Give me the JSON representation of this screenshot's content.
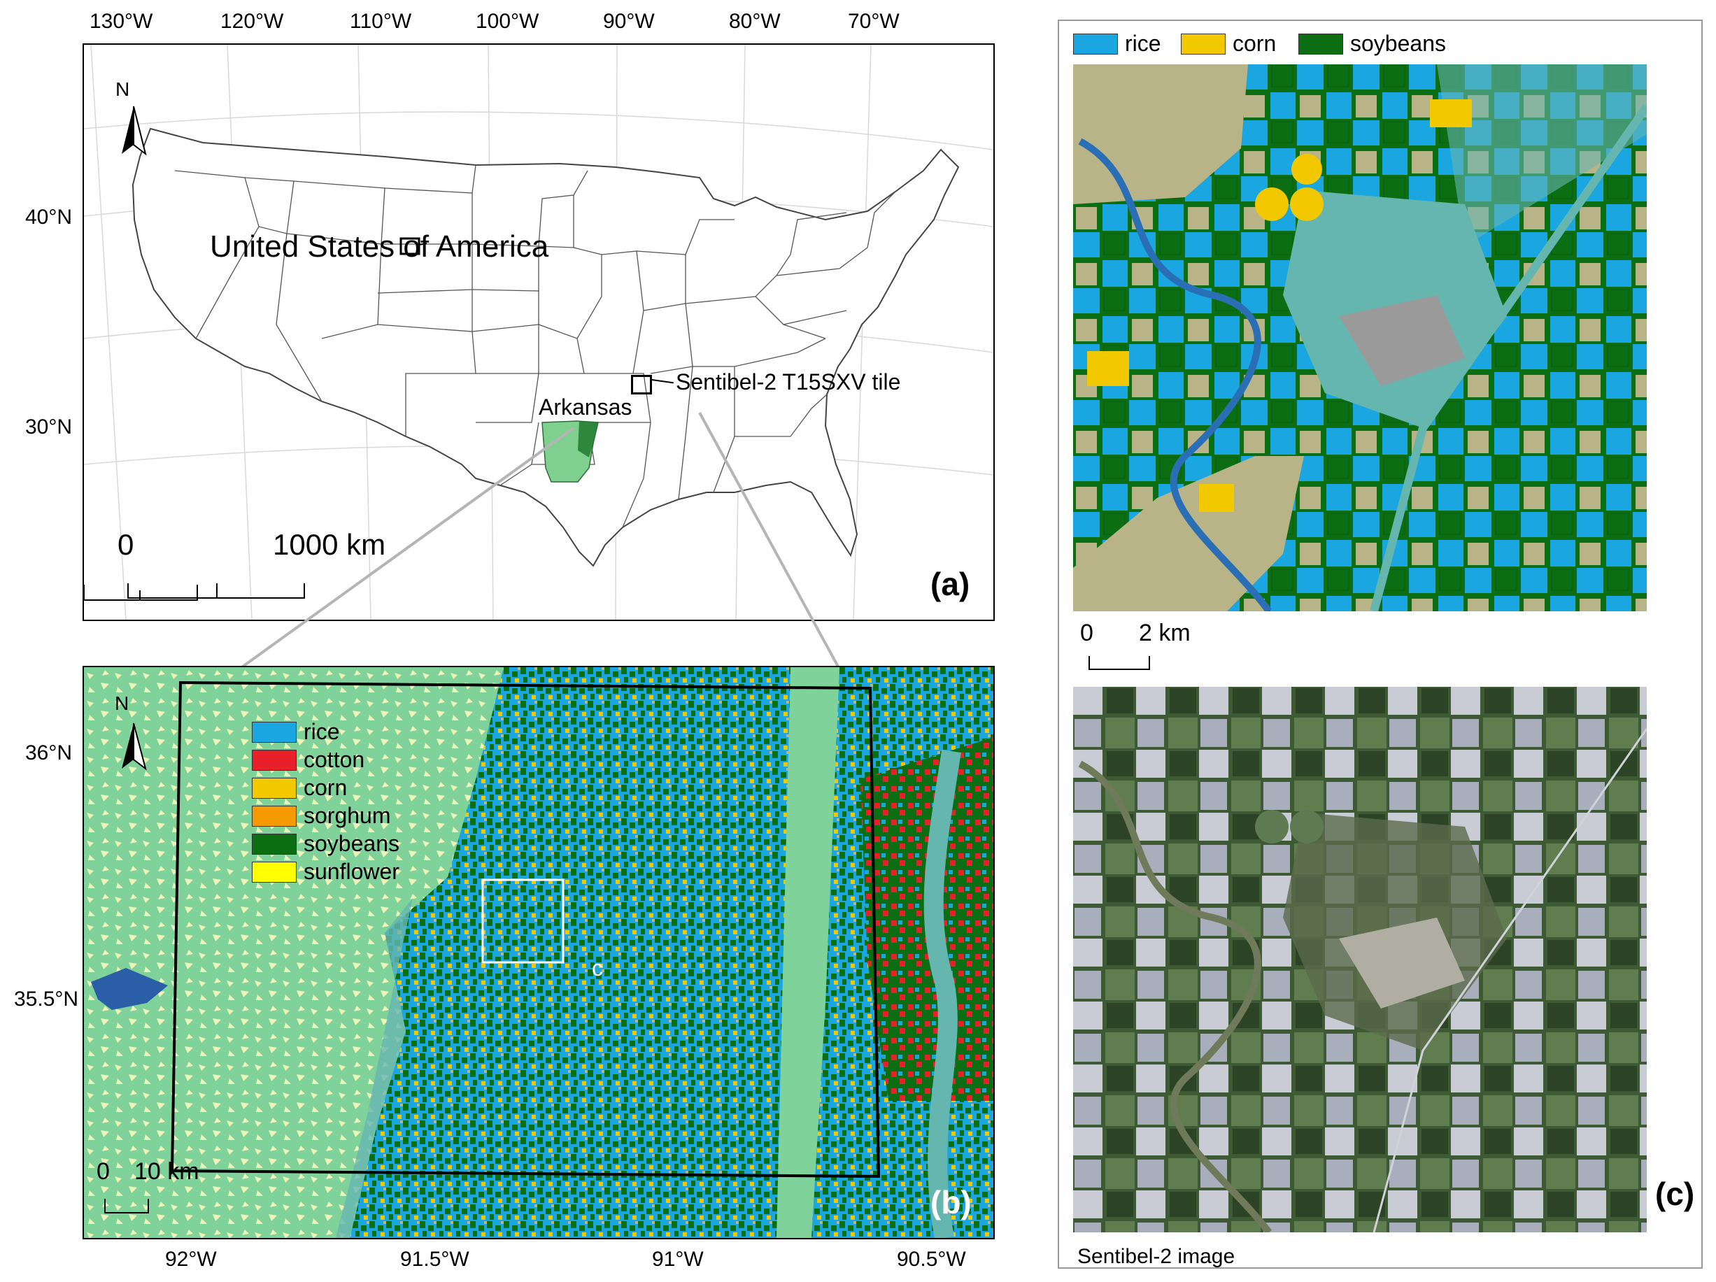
{
  "panel_a": {
    "lon_ticks": [
      "130°W",
      "120°W",
      "110°W",
      "100°W",
      "90°W",
      "80°W",
      "70°W"
    ],
    "lat_ticks": [
      "40°N",
      "30°N"
    ],
    "country_label": "United States of America",
    "state_label": "Arkansas",
    "tile_label": "Sentibel-2 T15SXV tile",
    "north_label": "N",
    "scale_start": "0",
    "scale_end": "1000 km",
    "tag": "(a)",
    "colors": {
      "arkansas_fill": "#7fcf8e",
      "tile_fill": "#1f7a2e"
    }
  },
  "panel_b": {
    "lat_ticks": [
      "36°N",
      "35.5°N"
    ],
    "lon_ticks": [
      "92°W",
      "91.5°W",
      "91°W",
      "90.5°W"
    ],
    "north_label": "N",
    "subset_label": "c",
    "scale_start": "0",
    "scale_end": "10 km",
    "tag": "(b)",
    "legend": [
      {
        "label": "rice",
        "color": "#1aa6e0"
      },
      {
        "label": "cotton",
        "color": "#e8202a"
      },
      {
        "label": "corn",
        "color": "#f2c900"
      },
      {
        "label": "sorghum",
        "color": "#f59a00"
      },
      {
        "label": "soybeans",
        "color": "#0b6e12"
      },
      {
        "label": "sunflower",
        "color": "#ffff00"
      }
    ],
    "background_colors": {
      "grassland": "#7fd29a",
      "forest": "#eef3b8",
      "water": "#2a5fa8",
      "fallow": "#b9b487",
      "urban": "#9a9a9a",
      "wetland": "#66b6b0"
    }
  },
  "panel_c": {
    "legend": [
      {
        "label": "rice",
        "color": "#1aa6e0"
      },
      {
        "label": "corn",
        "color": "#f2c900"
      },
      {
        "label": "soybeans",
        "color": "#0b6e12"
      }
    ],
    "scale_start": "0",
    "scale_end": "2 km",
    "image_caption": "Sentibel-2 image",
    "tag": "(c)"
  }
}
